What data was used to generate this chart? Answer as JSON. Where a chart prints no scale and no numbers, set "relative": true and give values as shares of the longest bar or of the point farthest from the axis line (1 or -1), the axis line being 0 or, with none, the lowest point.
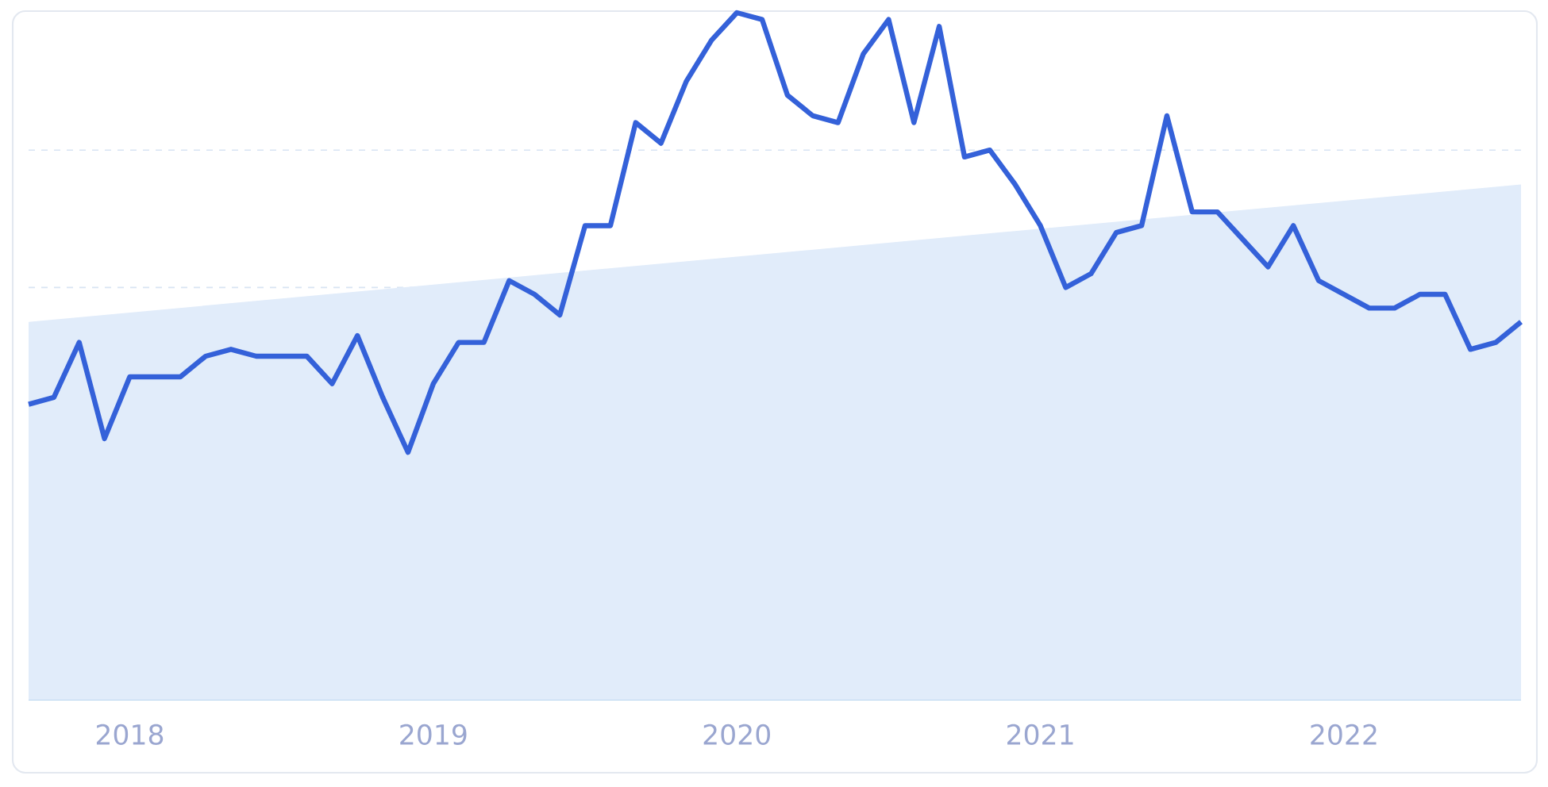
{
  "chart_data": {
    "type": "line",
    "relative": true,
    "grid": "y",
    "tick_labels": "x",
    "marker": "none",
    "line_style": "solid",
    "xlim": [
      "2017-09",
      "2022-08"
    ],
    "xticks": [
      "2018",
      "2019",
      "2020",
      "2021",
      "2022"
    ],
    "series": [
      {
        "type": "area",
        "color": "#e1ecfa",
        "x": [
          "2017-09",
          "2022-08"
        ],
        "values": [
          0.55,
          0.75
        ]
      },
      {
        "color": "#3461d9",
        "x": [
          "2017-09",
          "2017-10",
          "2017-11",
          "2017-12",
          "2018-01",
          "2018-02",
          "2018-03",
          "2018-04",
          "2018-05",
          "2018-06",
          "2018-07",
          "2018-08",
          "2018-09",
          "2018-10",
          "2018-11",
          "2018-12",
          "2019-01",
          "2019-02",
          "2019-03",
          "2019-04",
          "2019-05",
          "2019-06",
          "2019-07",
          "2019-08",
          "2019-09",
          "2019-10",
          "2019-11",
          "2019-12",
          "2020-01",
          "2020-02",
          "2020-03",
          "2020-04",
          "2020-05",
          "2020-06",
          "2020-07",
          "2020-08",
          "2020-09",
          "2020-10",
          "2020-11",
          "2020-12",
          "2021-01",
          "2021-02",
          "2021-03",
          "2021-04",
          "2021-05",
          "2021-06",
          "2021-07",
          "2021-08",
          "2021-09",
          "2021-10",
          "2021-11",
          "2021-12",
          "2022-01",
          "2022-02",
          "2022-03",
          "2022-04",
          "2022-05",
          "2022-06",
          "2022-07",
          "2022-08"
        ],
        "values": [
          0.43,
          0.44,
          0.52,
          0.38,
          0.47,
          0.47,
          0.47,
          0.5,
          0.51,
          0.5,
          0.5,
          0.5,
          0.46,
          0.53,
          0.44,
          0.36,
          0.46,
          0.52,
          0.52,
          0.61,
          0.59,
          0.56,
          0.69,
          0.69,
          0.84,
          0.81,
          0.9,
          0.96,
          1,
          0.99,
          0.88,
          0.85,
          0.84,
          0.94,
          0.99,
          0.84,
          0.98,
          0.79,
          0.8,
          0.75,
          0.69,
          0.6,
          0.62,
          0.68,
          0.69,
          0.85,
          0.71,
          0.71,
          0.67,
          0.63,
          0.69,
          0.61,
          0.59,
          0.57,
          0.57,
          0.59,
          0.59,
          0.51,
          0.52,
          0.55
        ]
      }
    ]
  }
}
